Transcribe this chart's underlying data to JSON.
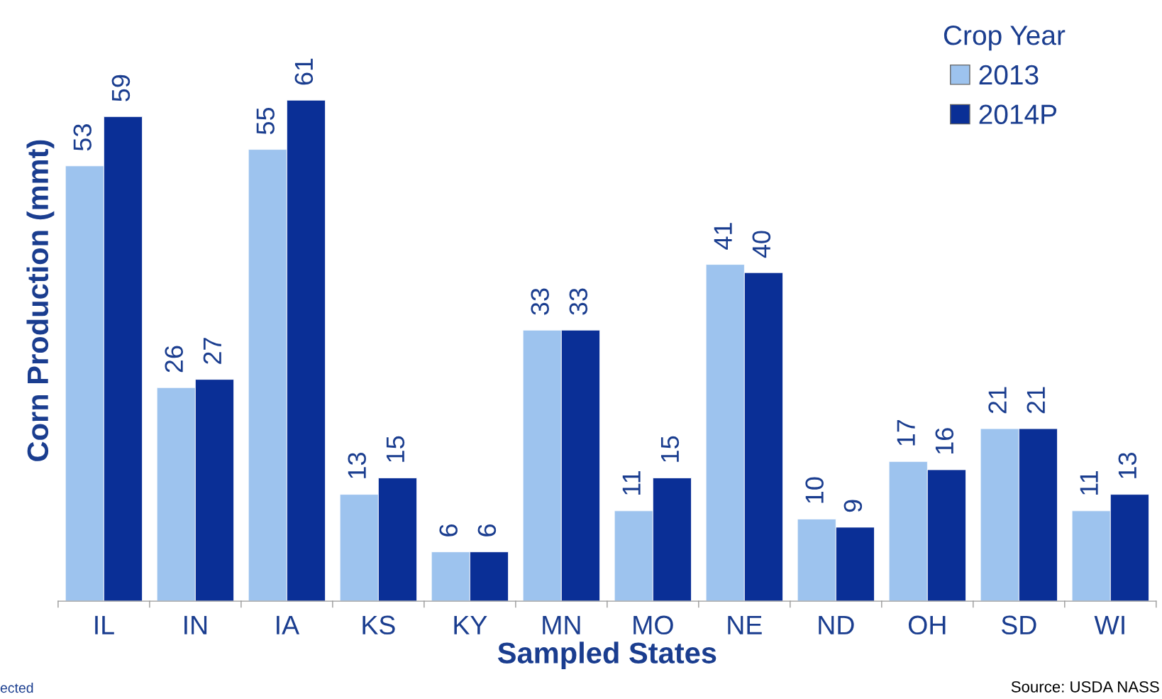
{
  "chart_data": {
    "type": "bar",
    "xlabel": "Sampled States",
    "ylabel": "Corn Production (mmt)",
    "legend_title": "Crop Year",
    "legend": "top right",
    "data_labels": true,
    "grid": false,
    "categories": [
      "IL",
      "IN",
      "IA",
      "KS",
      "KY",
      "MN",
      "MO",
      "NE",
      "ND",
      "OH",
      "SD",
      "WI"
    ],
    "series": [
      {
        "name": "2013",
        "color": "#9dc3ee",
        "values": [
          53,
          26,
          55,
          13,
          6,
          33,
          11,
          41,
          10,
          17,
          21,
          11
        ]
      },
      {
        "name": "2014P",
        "color": "#0a2f96",
        "values": [
          59,
          27,
          61,
          15,
          6,
          33,
          15,
          40,
          9,
          16,
          21,
          13
        ]
      }
    ],
    "annotations": [
      "ected",
      "Source: USDA NASS"
    ]
  }
}
